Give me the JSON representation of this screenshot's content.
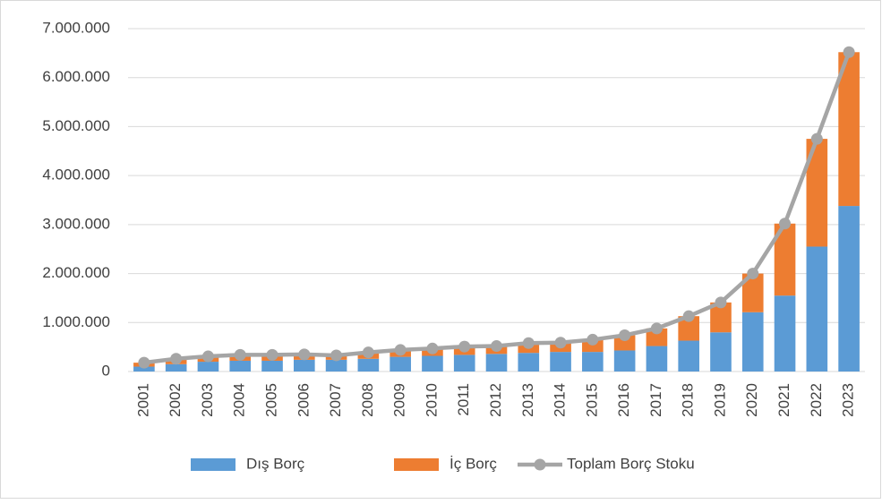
{
  "chart_data": {
    "type": "stacked_bar_line",
    "categories": [
      "2001",
      "2002",
      "2003",
      "2004",
      "2005",
      "2006",
      "2007",
      "2008",
      "2009",
      "2010",
      "2011",
      "2012",
      "2013",
      "2014",
      "2015",
      "2016",
      "2017",
      "2018",
      "2019",
      "2020",
      "2021",
      "2022",
      "2023"
    ],
    "series": [
      {
        "name": "Dış Borç",
        "color": "#5b9bd5",
        "kind": "bar",
        "values": [
          100000,
          150000,
          200000,
          220000,
          220000,
          240000,
          240000,
          260000,
          300000,
          320000,
          340000,
          360000,
          380000,
          400000,
          400000,
          430000,
          520000,
          630000,
          800000,
          1210000,
          1550000,
          2550000,
          3380000
        ]
      },
      {
        "name": "İç Borç",
        "color": "#ed7d31",
        "kind": "bar",
        "values": [
          80000,
          110000,
          110000,
          120000,
          120000,
          110000,
          90000,
          130000,
          140000,
          150000,
          170000,
          160000,
          200000,
          190000,
          250000,
          310000,
          360000,
          500000,
          610000,
          790000,
          1470000,
          2200000,
          3140000
        ]
      },
      {
        "name": "Toplam Borç Stoku",
        "color": "#a5a5a5",
        "kind": "line",
        "values": [
          180000,
          260000,
          310000,
          340000,
          340000,
          350000,
          330000,
          390000,
          440000,
          470000,
          510000,
          520000,
          580000,
          590000,
          650000,
          740000,
          880000,
          1130000,
          1410000,
          2000000,
          3020000,
          4750000,
          6520000
        ]
      }
    ],
    "ylim": [
      0,
      7000000
    ],
    "yticks": [
      0,
      {
        "value": 1000000,
        "label": "1.000.000"
      },
      {
        "value": 2000000,
        "label": "2.000.000"
      },
      {
        "value": 3000000,
        "label": "3.000.000"
      },
      {
        "value": 4000000,
        "label": "4.000.000"
      },
      {
        "value": 5000000,
        "label": "5.000.000"
      },
      {
        "value": 6000000,
        "label": "6.000.000"
      },
      {
        "value": 7000000,
        "label": "7.000.000"
      }
    ],
    "grid": true,
    "legend": "bottom"
  }
}
